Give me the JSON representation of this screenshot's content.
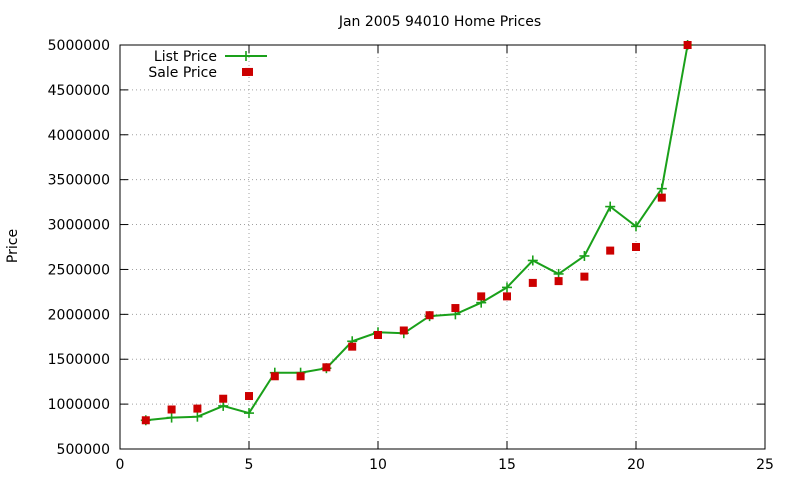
{
  "chart_data": {
    "type": "line",
    "title": "Jan 2005 94010 Home Prices",
    "xlabel": "",
    "ylabel": "Price",
    "xlim": [
      0,
      25
    ],
    "ylim": [
      500000,
      5000000
    ],
    "xticks": [
      0,
      5,
      10,
      15,
      20,
      25
    ],
    "yticks": [
      500000,
      1000000,
      1500000,
      2000000,
      2500000,
      3000000,
      3500000,
      4000000,
      4500000,
      5000000
    ],
    "grid": true,
    "legend_position": "top-left",
    "series": [
      {
        "name": "List Price",
        "style": "line-with-plus-markers",
        "color": "#1aa01a",
        "points": [
          [
            1,
            820000
          ],
          [
            2,
            850000
          ],
          [
            3,
            860000
          ],
          [
            4,
            980000
          ],
          [
            5,
            900000
          ],
          [
            6,
            1350000
          ],
          [
            7,
            1350000
          ],
          [
            8,
            1400000
          ],
          [
            9,
            1700000
          ],
          [
            10,
            1800000
          ],
          [
            11,
            1790000
          ],
          [
            12,
            1980000
          ],
          [
            13,
            2000000
          ],
          [
            14,
            2130000
          ],
          [
            15,
            2300000
          ],
          [
            16,
            2600000
          ],
          [
            17,
            2450000
          ],
          [
            18,
            2650000
          ],
          [
            19,
            3200000
          ],
          [
            20,
            2980000
          ],
          [
            21,
            3400000
          ],
          [
            22,
            5000000
          ]
        ]
      },
      {
        "name": "Sale Price",
        "style": "square-markers",
        "color": "#cc0000",
        "points": [
          [
            1,
            820000
          ],
          [
            2,
            940000
          ],
          [
            3,
            950000
          ],
          [
            4,
            1060000
          ],
          [
            5,
            1090000
          ],
          [
            6,
            1310000
          ],
          [
            7,
            1310000
          ],
          [
            8,
            1410000
          ],
          [
            9,
            1640000
          ],
          [
            10,
            1770000
          ],
          [
            11,
            1820000
          ],
          [
            12,
            1990000
          ],
          [
            13,
            2070000
          ],
          [
            14,
            2200000
          ],
          [
            15,
            2200000
          ],
          [
            16,
            2350000
          ],
          [
            17,
            2370000
          ],
          [
            18,
            2420000
          ],
          [
            19,
            2710000
          ],
          [
            20,
            2750000
          ],
          [
            21,
            3300000
          ],
          [
            22,
            5000000
          ],
          [
            5,
            4700000
          ]
        ]
      }
    ]
  }
}
